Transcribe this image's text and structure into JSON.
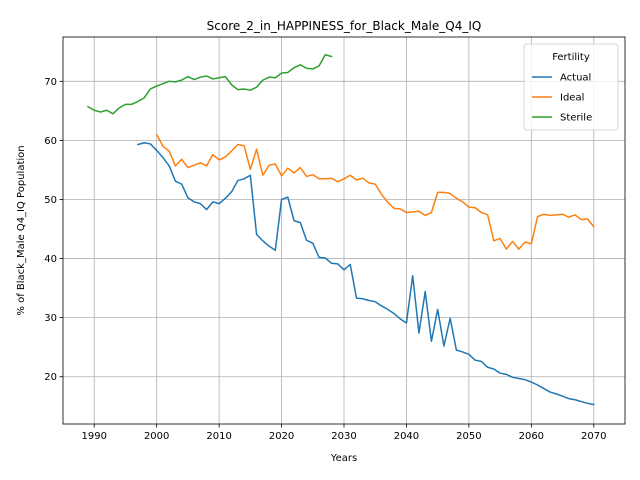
{
  "chart_data": {
    "type": "line",
    "title": "Score_2_in_HAPPINESS_for_Black_Male_Q4_IQ",
    "xlabel": "Years",
    "ylabel": "% of Black_Male Q4_IQ Population",
    "xlim": [
      1985,
      2075
    ],
    "ylim": [
      12,
      77.5
    ],
    "xticks": [
      1990,
      2000,
      2010,
      2020,
      2030,
      2040,
      2050,
      2060,
      2070
    ],
    "yticks": [
      20,
      30,
      40,
      50,
      60,
      70
    ],
    "grid": true,
    "legend": {
      "title": "Fertility",
      "position": "top-right"
    },
    "series": [
      {
        "name": "Actual",
        "color": "#1f77b4",
        "x": [
          1997,
          1998,
          1999,
          2000,
          2001,
          2002,
          2003,
          2004,
          2005,
          2006,
          2007,
          2008,
          2009,
          2010,
          2011,
          2012,
          2013,
          2014,
          2015,
          2016,
          2017,
          2018,
          2019,
          2020,
          2021,
          2022,
          2023,
          2024,
          2025,
          2026,
          2027,
          2028,
          2029,
          2030,
          2031,
          2032,
          2033,
          2034,
          2035,
          2036,
          2037,
          2038,
          2039,
          2040,
          2041,
          2042,
          2043,
          2044,
          2045,
          2046,
          2047,
          2048,
          2049,
          2050,
          2051,
          2052,
          2053,
          2054,
          2055,
          2056,
          2057,
          2058,
          2059,
          2060,
          2061,
          2062,
          2063,
          2064,
          2065,
          2066,
          2067,
          2068,
          2069,
          2070
        ],
        "values": [
          59.3,
          59.6,
          59.4,
          58.3,
          57.1,
          55.7,
          53.1,
          52.6,
          50.3,
          49.6,
          49.3,
          48.3,
          49.6,
          49.3,
          50.2,
          51.3,
          53.2,
          53.5,
          54.1,
          44.1,
          43.0,
          42.1,
          41.4,
          50.0,
          50.4,
          46.4,
          46.1,
          43.1,
          42.6,
          40.2,
          40.1,
          39.2,
          39.1,
          38.1,
          39.0,
          33.3,
          33.2,
          32.9,
          32.7,
          32.0,
          31.4,
          30.7,
          29.8,
          29.1,
          37.1,
          27.4,
          34.4,
          26.0,
          31.4,
          25.2,
          29.9,
          24.5,
          24.2,
          23.8,
          22.8,
          22.6,
          21.6,
          21.3,
          20.6,
          20.4,
          19.9,
          19.7,
          19.5,
          19.1,
          18.6,
          18.0,
          17.4,
          17.1,
          16.7,
          16.3,
          16.1,
          15.8,
          15.5,
          15.3
        ]
      },
      {
        "name": "Ideal",
        "color": "#ff7f0e",
        "x": [
          2000,
          2001,
          2002,
          2003,
          2004,
          2005,
          2006,
          2007,
          2008,
          2009,
          2010,
          2011,
          2012,
          2013,
          2014,
          2015,
          2016,
          2017,
          2018,
          2019,
          2020,
          2021,
          2022,
          2023,
          2024,
          2025,
          2026,
          2027,
          2028,
          2029,
          2030,
          2031,
          2032,
          2033,
          2034,
          2035,
          2036,
          2037,
          2038,
          2039,
          2040,
          2041,
          2042,
          2043,
          2044,
          2045,
          2046,
          2047,
          2048,
          2049,
          2050,
          2051,
          2052,
          2053,
          2054,
          2055,
          2056,
          2057,
          2058,
          2059,
          2060,
          2061,
          2062,
          2063,
          2064,
          2065,
          2066,
          2067,
          2068,
          2069,
          2070
        ],
        "values": [
          61.0,
          59.0,
          58.2,
          55.7,
          56.8,
          55.4,
          55.8,
          56.2,
          55.7,
          57.6,
          56.7,
          57.2,
          58.2,
          59.3,
          59.1,
          55.1,
          58.5,
          54.1,
          55.8,
          56.0,
          54.0,
          55.3,
          54.5,
          55.4,
          53.9,
          54.2,
          53.5,
          53.5,
          53.6,
          53.0,
          53.5,
          54.1,
          53.3,
          53.6,
          52.8,
          52.6,
          50.9,
          49.5,
          48.5,
          48.4,
          47.8,
          47.9,
          48.0,
          47.3,
          47.8,
          51.2,
          51.2,
          51.0,
          50.2,
          49.6,
          48.7,
          48.6,
          47.8,
          47.4,
          43.0,
          43.4,
          41.6,
          42.9,
          41.6,
          42.8,
          42.5,
          47.1,
          47.5,
          47.3,
          47.4,
          47.5,
          47.0,
          47.4,
          46.6,
          46.7,
          45.4
        ]
      },
      {
        "name": "Sterile",
        "color": "#2ca02c",
        "x": [
          1989,
          1990,
          1991,
          1992,
          1993,
          1994,
          1995,
          1996,
          1997,
          1998,
          1999,
          2000,
          2001,
          2002,
          2003,
          2004,
          2005,
          2006,
          2007,
          2008,
          2009,
          2010,
          2011,
          2012,
          2013,
          2014,
          2015,
          2016,
          2017,
          2018,
          2019,
          2020,
          2021,
          2022,
          2023,
          2024,
          2025,
          2026,
          2027,
          2028
        ],
        "values": [
          65.7,
          65.1,
          64.8,
          65.1,
          64.5,
          65.5,
          66.1,
          66.1,
          66.6,
          67.2,
          68.7,
          69.2,
          69.6,
          70.0,
          69.9,
          70.2,
          70.8,
          70.3,
          70.7,
          70.9,
          70.4,
          70.6,
          70.8,
          69.4,
          68.6,
          68.7,
          68.5,
          69.0,
          70.2,
          70.7,
          70.6,
          71.4,
          71.5,
          72.3,
          72.8,
          72.2,
          72.1,
          72.6,
          74.5,
          74.2
        ]
      }
    ]
  }
}
